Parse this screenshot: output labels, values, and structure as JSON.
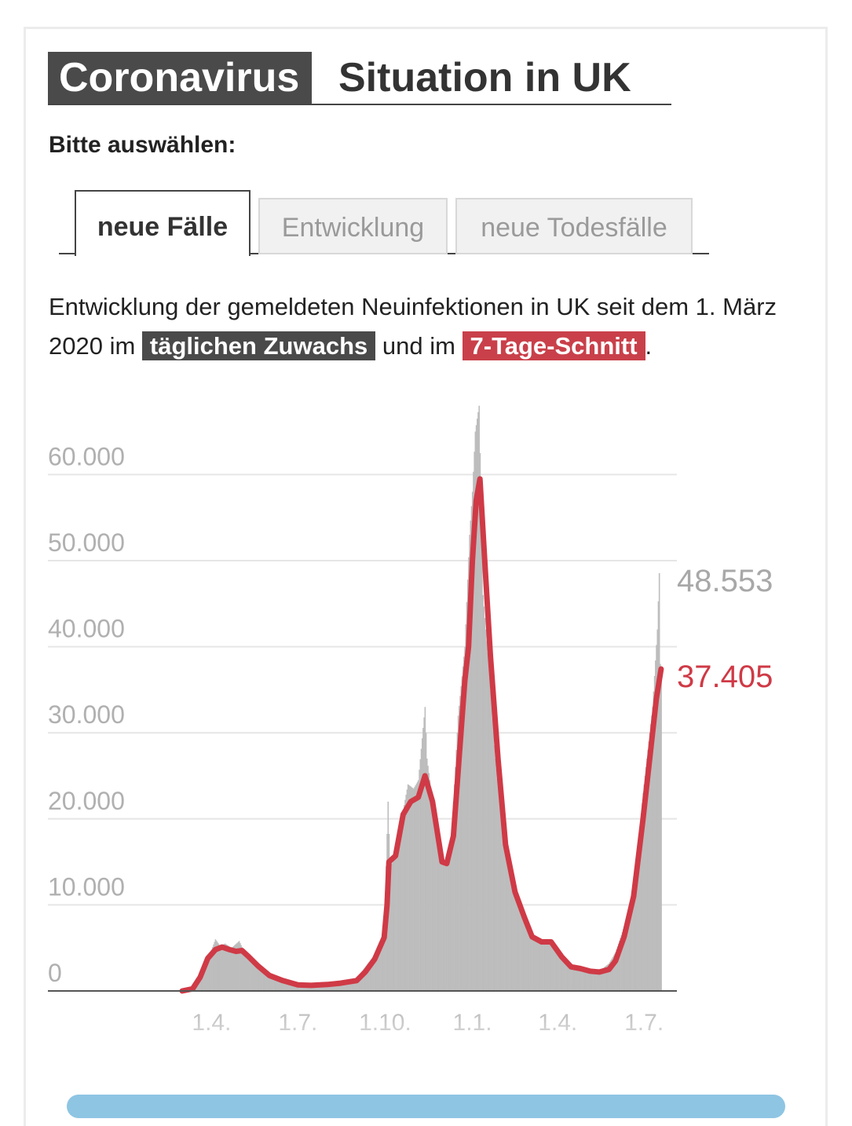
{
  "header": {
    "badge": "Coronavirus",
    "title": "Situation in UK"
  },
  "select_label": "Bitte auswählen:",
  "tabs": [
    {
      "label": "neue Fälle",
      "active": true
    },
    {
      "label": "Entwicklung",
      "active": false
    },
    {
      "label": "neue Todesfälle",
      "active": false
    }
  ],
  "description": {
    "part1": "Entwicklung der gemeldeten Neuinfektionen in UK seit dem 1. März 2020 im ",
    "highlight1": "täglichen Zuwachs",
    "part2": " und im ",
    "highlight2": "7-Tage-Schnitt",
    "part3": "."
  },
  "colors": {
    "daily_bars": "#bdbdbd",
    "average_line": "#cf3a46",
    "highlight_grey": "#4a4a4a",
    "highlight_red": "#c9404a",
    "gridline": "#e6e6e6",
    "tick_label": "#b0b0b0"
  },
  "chart_data": {
    "type": "area",
    "title": "",
    "xlabel": "",
    "ylabel": "",
    "x_range": [
      "2020-03-01",
      "2021-07-20"
    ],
    "ylim": [
      0,
      68000
    ],
    "y_ticks": [
      0,
      10000,
      20000,
      30000,
      40000,
      50000,
      60000
    ],
    "y_tick_labels": [
      "0",
      "10.000",
      "20.000",
      "30.000",
      "40.000",
      "50.000",
      "60.000"
    ],
    "x_ticks": [
      "2020-04-01",
      "2020-07-01",
      "2020-10-01",
      "2021-01-01",
      "2021-04-01",
      "2021-07-01"
    ],
    "x_tick_labels": [
      "1.4.",
      "1.7.",
      "1.10.",
      "1.1.",
      "1.4.",
      "1.7."
    ],
    "grid": true,
    "end_labels": {
      "daily": "48.553",
      "average": "37.405"
    },
    "series": [
      {
        "name": "täglichen Zuwachs",
        "style": "bars",
        "points": [
          [
            "2020-03-01",
            0
          ],
          [
            "2020-03-15",
            600
          ],
          [
            "2020-03-25",
            3000
          ],
          [
            "2020-04-01",
            4800
          ],
          [
            "2020-04-05",
            6000
          ],
          [
            "2020-04-10",
            5200
          ],
          [
            "2020-04-15",
            5500
          ],
          [
            "2020-04-22",
            5000
          ],
          [
            "2020-04-30",
            5800
          ],
          [
            "2020-05-05",
            4600
          ],
          [
            "2020-05-12",
            3600
          ],
          [
            "2020-05-20",
            2700
          ],
          [
            "2020-06-01",
            1800
          ],
          [
            "2020-06-15",
            1300
          ],
          [
            "2020-07-01",
            800
          ],
          [
            "2020-07-15",
            650
          ],
          [
            "2020-08-01",
            800
          ],
          [
            "2020-08-15",
            1100
          ],
          [
            "2020-09-01",
            1500
          ],
          [
            "2020-09-10",
            2800
          ],
          [
            "2020-09-20",
            4200
          ],
          [
            "2020-09-30",
            7000
          ],
          [
            "2020-10-04",
            22000
          ],
          [
            "2020-10-06",
            14500
          ],
          [
            "2020-10-12",
            15500
          ],
          [
            "2020-10-20",
            21000
          ],
          [
            "2020-10-25",
            24000
          ],
          [
            "2020-10-31",
            23500
          ],
          [
            "2020-11-05",
            24500
          ],
          [
            "2020-11-12",
            33000
          ],
          [
            "2020-11-14",
            27000
          ],
          [
            "2020-11-20",
            22000
          ],
          [
            "2020-11-28",
            15000
          ],
          [
            "2020-12-03",
            14500
          ],
          [
            "2020-12-10",
            18000
          ],
          [
            "2020-12-17",
            32000
          ],
          [
            "2020-12-24",
            40000
          ],
          [
            "2020-12-29",
            53000
          ],
          [
            "2021-01-01",
            58000
          ],
          [
            "2021-01-04",
            65000
          ],
          [
            "2021-01-08",
            68000
          ],
          [
            "2021-01-12",
            46000
          ],
          [
            "2021-01-18",
            38000
          ],
          [
            "2021-01-25",
            27000
          ],
          [
            "2021-02-01",
            19000
          ],
          [
            "2021-02-10",
            13500
          ],
          [
            "2021-02-20",
            10000
          ],
          [
            "2021-03-01",
            7000
          ],
          [
            "2021-03-10",
            6000
          ],
          [
            "2021-03-20",
            5800
          ],
          [
            "2021-04-01",
            4800
          ],
          [
            "2021-04-10",
            3300
          ],
          [
            "2021-04-20",
            2600
          ],
          [
            "2021-05-01",
            2300
          ],
          [
            "2021-05-15",
            2300
          ],
          [
            "2021-05-25",
            3200
          ],
          [
            "2021-06-01",
            4500
          ],
          [
            "2021-06-10",
            7500
          ],
          [
            "2021-06-20",
            11000
          ],
          [
            "2021-06-30",
            23000
          ],
          [
            "2021-07-05",
            28000
          ],
          [
            "2021-07-10",
            33000
          ],
          [
            "2021-07-15",
            42000
          ],
          [
            "2021-07-17",
            48553
          ],
          [
            "2021-07-18",
            38000
          ],
          [
            "2021-07-19",
            36000
          ]
        ]
      },
      {
        "name": "7-Tage-Schnitt",
        "style": "line",
        "points": [
          [
            "2020-03-01",
            0
          ],
          [
            "2020-03-12",
            250
          ],
          [
            "2020-03-20",
            1600
          ],
          [
            "2020-03-28",
            3800
          ],
          [
            "2020-04-05",
            4800
          ],
          [
            "2020-04-12",
            5100
          ],
          [
            "2020-04-20",
            4800
          ],
          [
            "2020-04-27",
            4600
          ],
          [
            "2020-05-03",
            4700
          ],
          [
            "2020-05-10",
            4000
          ],
          [
            "2020-05-20",
            2900
          ],
          [
            "2020-06-01",
            1800
          ],
          [
            "2020-06-15",
            1200
          ],
          [
            "2020-07-01",
            700
          ],
          [
            "2020-07-15",
            650
          ],
          [
            "2020-08-01",
            750
          ],
          [
            "2020-08-15",
            900
          ],
          [
            "2020-09-01",
            1200
          ],
          [
            "2020-09-10",
            2200
          ],
          [
            "2020-09-20",
            3700
          ],
          [
            "2020-09-30",
            6200
          ],
          [
            "2020-10-03",
            10000
          ],
          [
            "2020-10-05",
            15000
          ],
          [
            "2020-10-12",
            15700
          ],
          [
            "2020-10-20",
            20500
          ],
          [
            "2020-10-28",
            22000
          ],
          [
            "2020-11-05",
            22500
          ],
          [
            "2020-11-12",
            25000
          ],
          [
            "2020-11-20",
            22000
          ],
          [
            "2020-11-30",
            15000
          ],
          [
            "2020-12-05",
            14800
          ],
          [
            "2020-12-12",
            18000
          ],
          [
            "2020-12-18",
            27000
          ],
          [
            "2020-12-24",
            36000
          ],
          [
            "2020-12-28",
            40000
          ],
          [
            "2021-01-01",
            50000
          ],
          [
            "2021-01-05",
            57000
          ],
          [
            "2021-01-09",
            59500
          ],
          [
            "2021-01-14",
            50000
          ],
          [
            "2021-01-20",
            39000
          ],
          [
            "2021-01-28",
            27000
          ],
          [
            "2021-02-05",
            17000
          ],
          [
            "2021-02-15",
            11500
          ],
          [
            "2021-02-25",
            8500
          ],
          [
            "2021-03-05",
            6300
          ],
          [
            "2021-03-15",
            5700
          ],
          [
            "2021-03-25",
            5700
          ],
          [
            "2021-04-05",
            4000
          ],
          [
            "2021-04-15",
            2800
          ],
          [
            "2021-04-25",
            2600
          ],
          [
            "2021-05-05",
            2300
          ],
          [
            "2021-05-15",
            2200
          ],
          [
            "2021-05-25",
            2500
          ],
          [
            "2021-06-01",
            3500
          ],
          [
            "2021-06-10",
            6300
          ],
          [
            "2021-06-20",
            11000
          ],
          [
            "2021-06-30",
            20000
          ],
          [
            "2021-07-07",
            27000
          ],
          [
            "2021-07-14",
            34000
          ],
          [
            "2021-07-19",
            37405
          ]
        ]
      }
    ]
  }
}
